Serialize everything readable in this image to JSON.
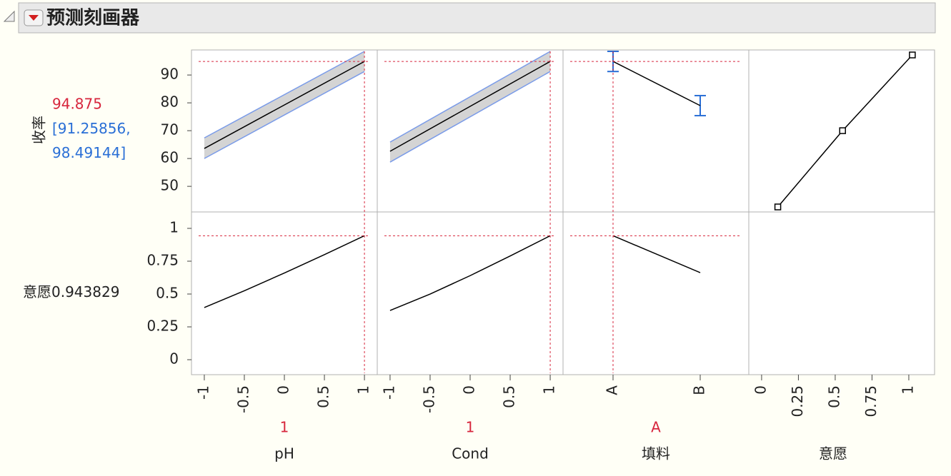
{
  "header": {
    "title": "预测刻画器"
  },
  "chart_data": {
    "type": "profiler",
    "responses": [
      {
        "label": "收率",
        "current": 94.875,
        "ci_label": "[91.25856, 98.49144]",
        "ylim": [
          40.8,
          99
        ],
        "yticks": [
          50,
          60,
          70,
          80,
          90
        ]
      },
      {
        "label": "意愿",
        "current": 0.943829,
        "ylim": [
          -0.114,
          1.125
        ],
        "yticks": [
          0,
          0.25,
          0.5,
          0.75,
          1
        ]
      }
    ],
    "factors": [
      {
        "name": "pH",
        "setting": 1,
        "xlim": [
          -1.16,
          1.16
        ],
        "xticks": [
          -1,
          -0.5,
          0,
          0.5,
          1
        ],
        "x": [
          -1,
          1
        ],
        "pred": [
          63.6,
          94.875
        ],
        "lower": [
          60.0,
          91.25856
        ],
        "upper": [
          67.4,
          98.49144
        ],
        "dx": [
          -1,
          -0.5,
          0,
          0.5,
          1
        ],
        "desirability": [
          0.397,
          0.525,
          0.66,
          0.8,
          0.943829
        ]
      },
      {
        "name": "Cond",
        "setting": 1,
        "xlim": [
          -1.16,
          1.16
        ],
        "xticks": [
          -1,
          -0.5,
          0,
          0.5,
          1
        ],
        "x": [
          -1,
          1
        ],
        "pred": [
          62.6,
          94.875
        ],
        "lower": [
          58.7,
          91.25856
        ],
        "upper": [
          65.9,
          98.49144
        ],
        "dx": [
          -1,
          -0.5,
          0,
          0.5,
          1
        ],
        "desirability": [
          0.375,
          0.5,
          0.64,
          0.79,
          0.943829
        ]
      },
      {
        "name": "填料",
        "setting": "A",
        "categories": [
          "A",
          "B"
        ],
        "pred": [
          94.875,
          79.0
        ],
        "lower": [
          91.25856,
          75.4
        ],
        "upper": [
          98.49144,
          82.6
        ],
        "desirability": [
          0.943829,
          0.663
        ]
      }
    ],
    "desirability_function": {
      "name": "意愿",
      "xlim": [
        -0.087,
        1.175
      ],
      "xticks": [
        0,
        0.25,
        0.5,
        0.75,
        1
      ],
      "x": [
        0.11,
        0.55,
        1.024
      ],
      "y": [
        42.6,
        70,
        97.2
      ]
    }
  }
}
